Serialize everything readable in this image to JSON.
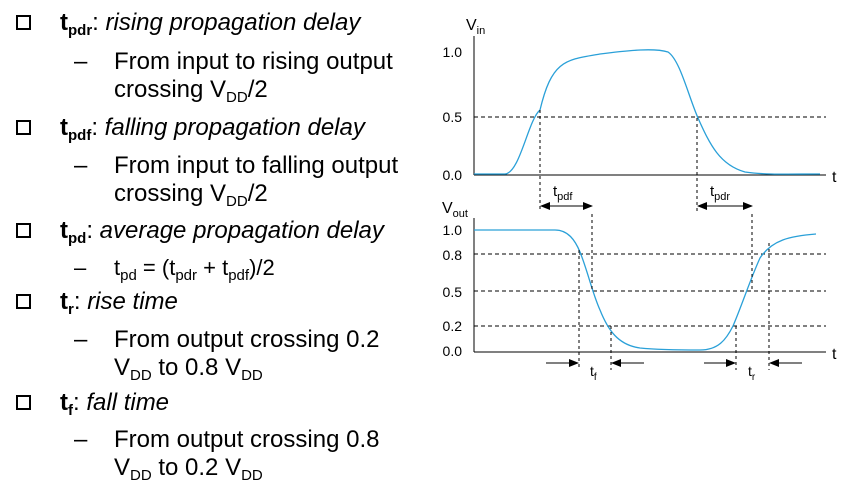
{
  "bullets": [
    {
      "symbol": "t",
      "symbol_sub": "pdr",
      "separator": ": ",
      "desc": "rising propagation delay",
      "details": [
        {
          "line1": "From input to rising output",
          "line2_pre": "crossing V",
          "line2_sub": "DD",
          "line2_post": "/2"
        }
      ]
    },
    {
      "symbol": "t",
      "symbol_sub": "pdf",
      "separator": ": ",
      "desc": "falling propagation delay",
      "details": [
        {
          "line1": "From input to falling output",
          "line2_pre": "crossing V",
          "line2_sub": "DD",
          "line2_post": "/2"
        }
      ]
    },
    {
      "symbol": "t",
      "symbol_sub": "pd",
      "separator": ": ",
      "desc": "average propagation delay",
      "formula": {
        "a": "t",
        "a_sub": "pd",
        "b": " = (t",
        "b_sub": "pdr",
        "c": " + t",
        "c_sub": "pdf",
        "d": ")/2"
      }
    },
    {
      "symbol": "t",
      "symbol_sub": "r",
      "separator": ": ",
      "desc": "rise time",
      "details": [
        {
          "line1": "From output crossing 0.2",
          "line2_pre": "V",
          "line2_sub": "DD",
          "line2_mid": " to 0.8 V",
          "line2_sub2": "DD"
        }
      ]
    },
    {
      "symbol": "t",
      "symbol_sub": "f",
      "separator": ": ",
      "desc": "fall time",
      "details": [
        {
          "line1": "From output crossing 0.8",
          "line2_pre": "V",
          "line2_sub": "DD",
          "line2_mid": " to 0.2 V",
          "line2_sub2": "DD"
        }
      ]
    }
  ],
  "dash": "–",
  "diagram": {
    "vin_label": "V",
    "vin_sub": "in",
    "vout_label": "V",
    "vout_sub": "out",
    "time_label": "t",
    "vin_ticks": [
      "1.0",
      "0.5",
      "0.0"
    ],
    "vout_ticks": [
      "1.0",
      "0.8",
      "0.5",
      "0.2",
      "0.0"
    ],
    "tpdf": {
      "main": "t",
      "sub": "pdf"
    },
    "tpdr": {
      "main": "t",
      "sub": "pdr"
    },
    "tf": {
      "main": "t",
      "sub": "f"
    },
    "tr": {
      "main": "t",
      "sub": "r"
    },
    "curve_color": "#2aa0d8"
  }
}
